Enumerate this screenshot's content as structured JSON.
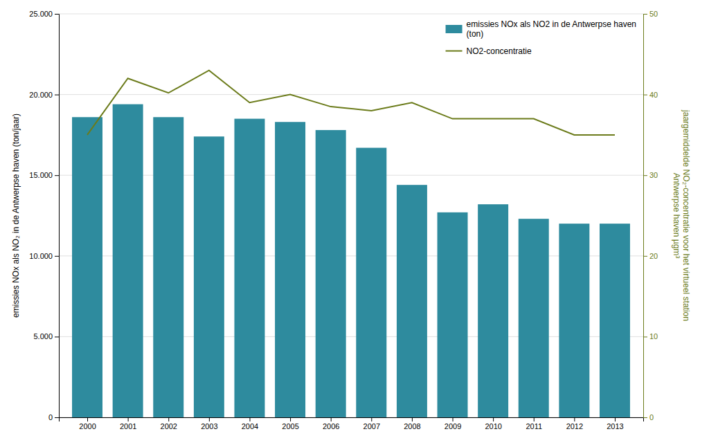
{
  "chart_data": {
    "type": "bar",
    "x": [
      2000,
      2001,
      2002,
      2003,
      2004,
      2005,
      2006,
      2007,
      2008,
      2009,
      2010,
      2011,
      2012,
      2013
    ],
    "xlim": [
      1999.3,
      2013.7
    ],
    "xticks": [
      2000,
      2001,
      2002,
      2003,
      2004,
      2005,
      2006,
      2007,
      2008,
      2009,
      2010,
      2011,
      2012,
      2013
    ],
    "series": [
      {
        "name": "emissies NOx als NO2 in de Antwerpse haven\n(ton)",
        "type": "bar",
        "color": "#2e8b9e",
        "values": [
          18600,
          19400,
          18600,
          17400,
          18500,
          18300,
          17800,
          16700,
          14400,
          12700,
          13200,
          12300,
          12000,
          12000
        ]
      },
      {
        "name": "NO2-concentratie",
        "type": "line",
        "color": "#6b7b1a",
        "axis": "y2",
        "values": [
          35.0,
          42.0,
          40.2,
          43.0,
          39.0,
          40.0,
          38.5,
          38.0,
          39.0,
          37.0,
          37.0,
          37.0,
          35.0,
          35.0
        ]
      }
    ],
    "ylabel": "emissies NOx als NO₂ in de Antwerpse haven (ton/jaar)",
    "y2label": "jaargemiddelde NO₂-concentratie voor het virtueel station\nAntwerpse haven µgm³",
    "ylim": [
      0,
      25000
    ],
    "yticks": [
      0,
      {
        "value": 5000,
        "label": "5.000"
      },
      {
        "value": 10000,
        "label": "10.000"
      },
      {
        "value": 15000,
        "label": "15.000"
      },
      {
        "value": 20000,
        "label": "20.000"
      },
      {
        "value": 25000,
        "label": "25.000"
      }
    ],
    "y2lim": [
      0,
      50
    ],
    "y2ticks": [
      0,
      10,
      20,
      30,
      40,
      50
    ],
    "grid": true,
    "legend": "upper right"
  }
}
